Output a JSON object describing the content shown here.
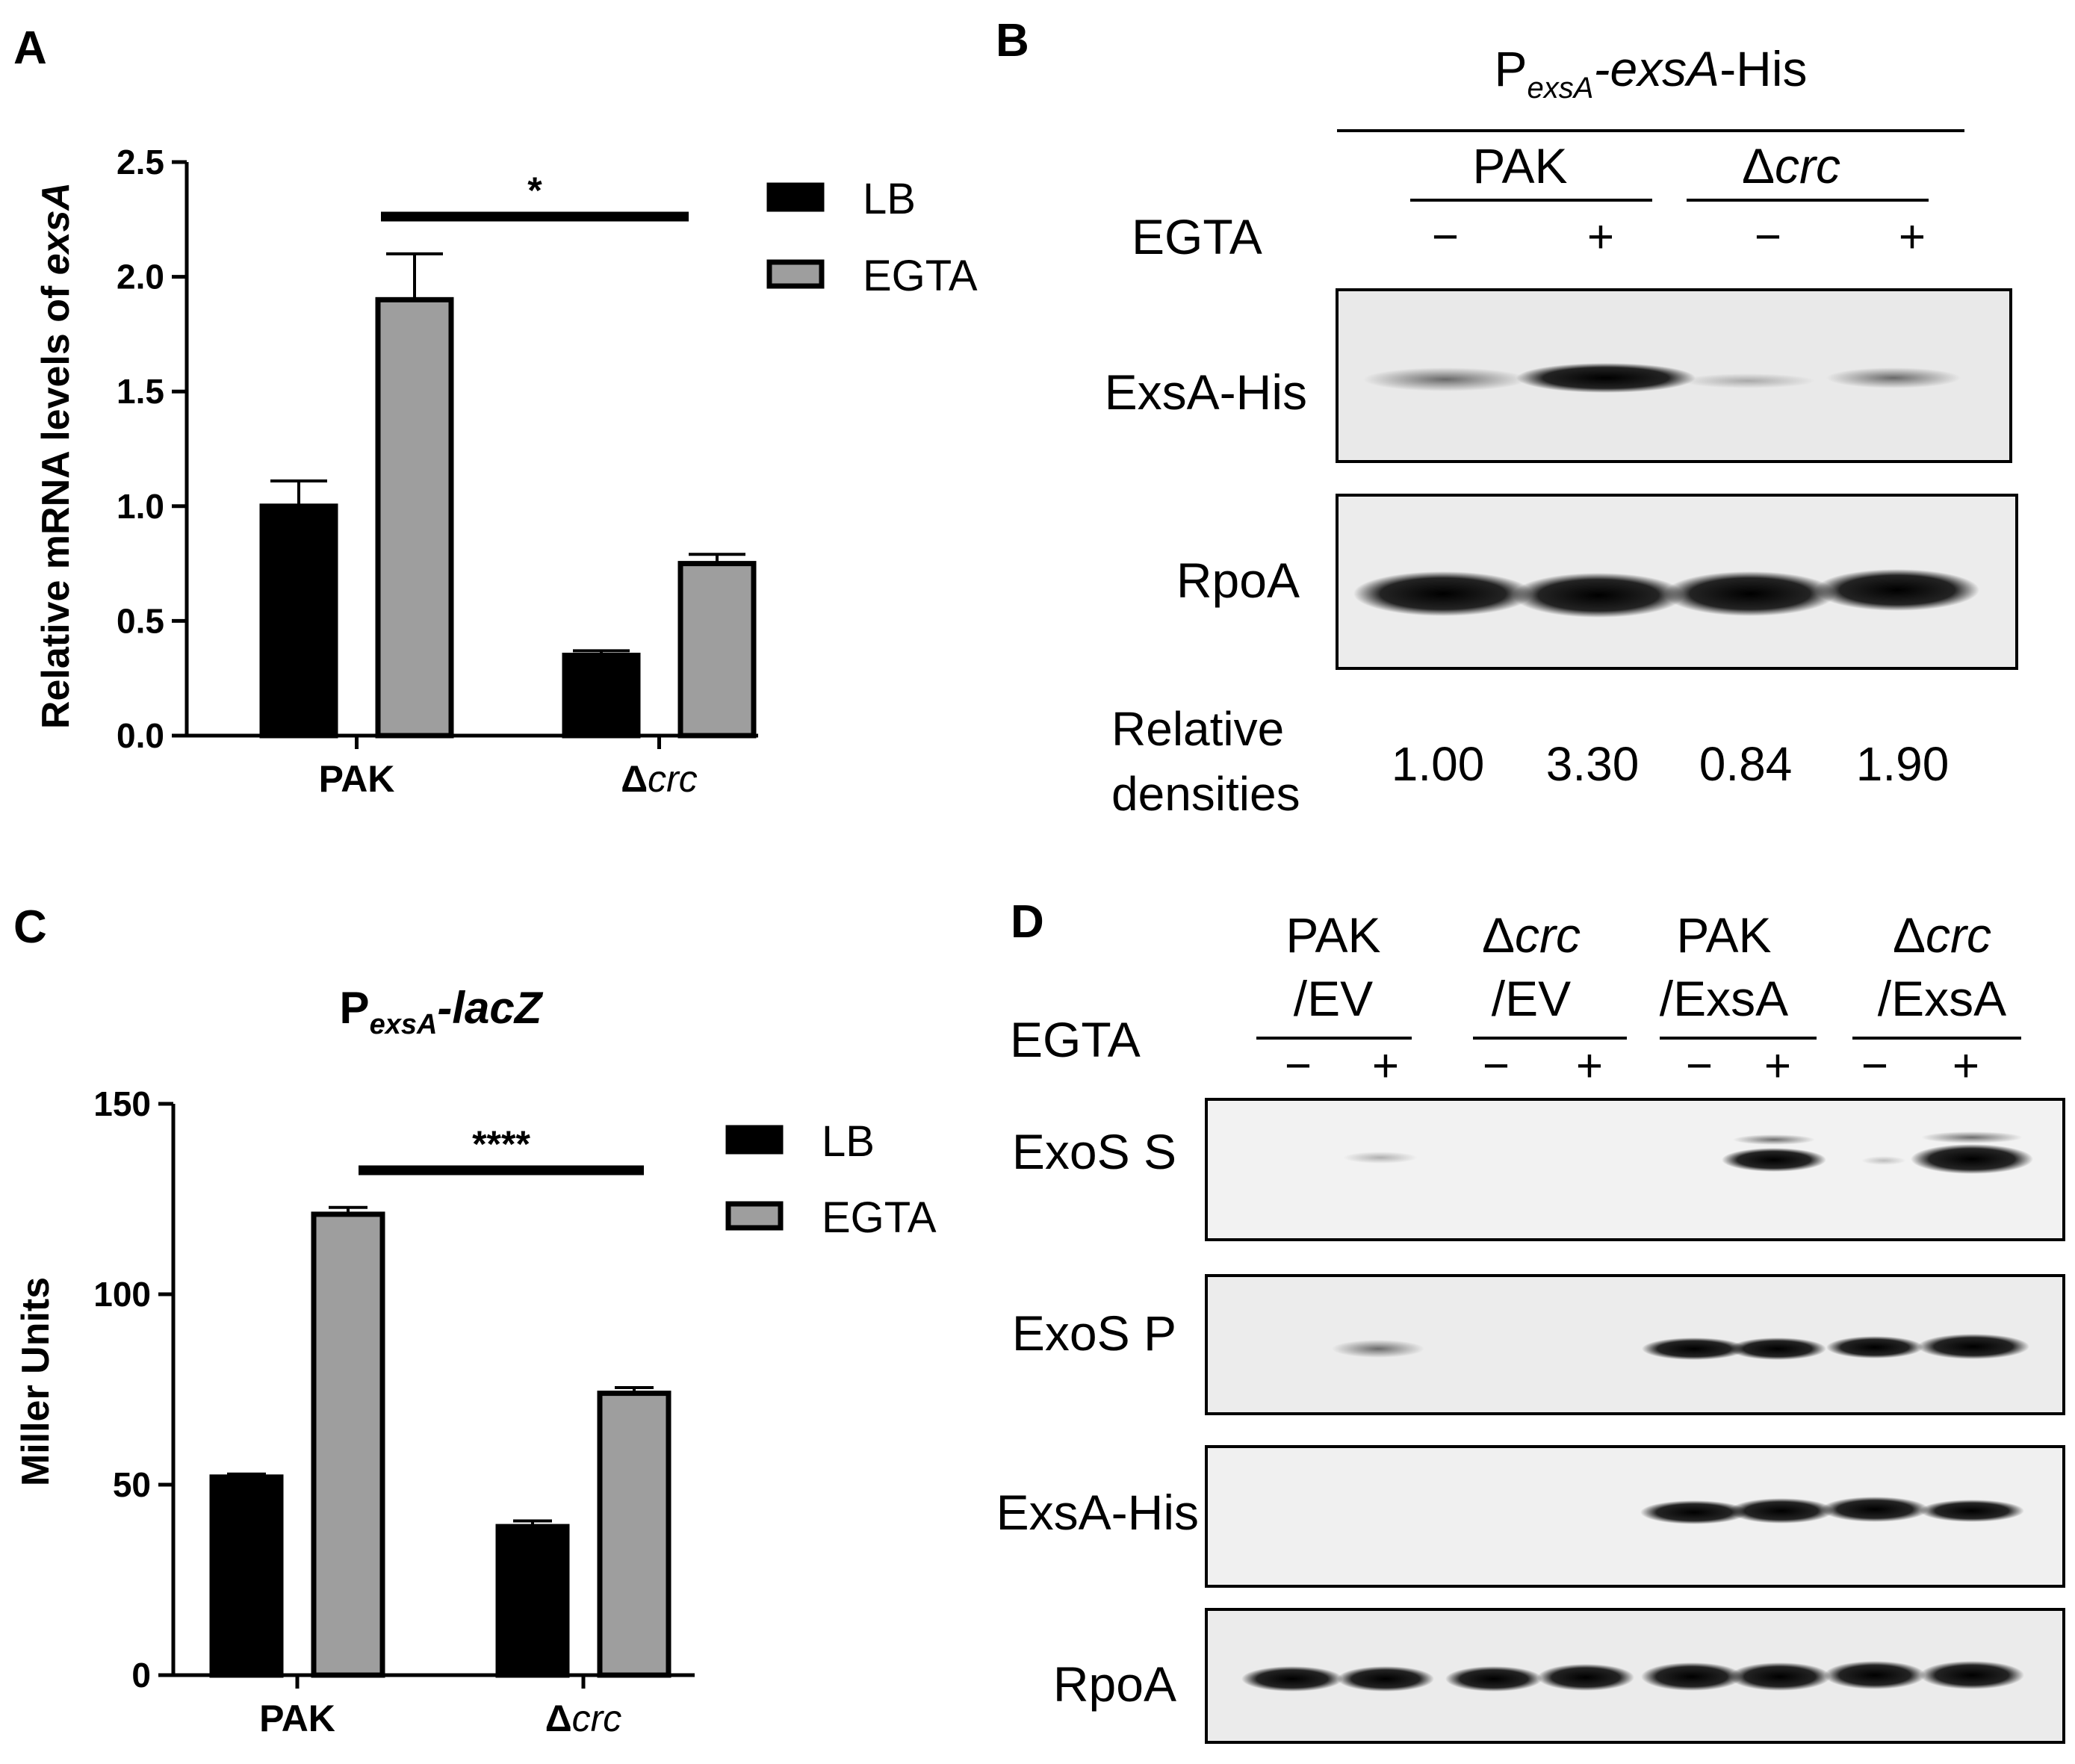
{
  "panels": {
    "A": {
      "letter": "A",
      "chart_data": {
        "type": "bar",
        "ylabel": "Relative mRNA levels of ",
        "ylabel_italic": "exsA",
        "categories": [
          "PAK",
          "Δcrc"
        ],
        "series": [
          {
            "name": "LB",
            "color": "#000000",
            "values": [
              1.0,
              0.35
            ],
            "errors": [
              0.11,
              0.02
            ]
          },
          {
            "name": "EGTA",
            "color": "#9e9e9e",
            "values": [
              1.9,
              0.75
            ],
            "errors": [
              0.2,
              0.04
            ]
          }
        ],
        "ylim": [
          0,
          2.5
        ],
        "yticks": [
          "0.0",
          "0.5",
          "1.0",
          "1.5",
          "2.0",
          "2.5"
        ],
        "significance": "*",
        "grid": false,
        "legend_position": "top-right"
      }
    },
    "C": {
      "letter": "C",
      "title_prefix": "P",
      "title_sub": "exsA",
      "title_suffix": "-lacZ",
      "chart_data": {
        "type": "bar",
        "ylabel": "Miller Units",
        "categories": [
          "PAK",
          "Δcrc"
        ],
        "series": [
          {
            "name": "LB",
            "color": "#000000",
            "values": [
              52,
              39
            ],
            "errors": [
              0.8,
              1.5
            ]
          },
          {
            "name": "EGTA",
            "color": "#9e9e9e",
            "values": [
              121,
              74
            ],
            "errors": [
              1.8,
              1.5
            ]
          }
        ],
        "ylim": [
          0,
          150
        ],
        "yticks": [
          "0",
          "50",
          "100",
          "150"
        ],
        "significance": "****",
        "grid": false,
        "legend_position": "top-right"
      }
    },
    "B": {
      "letter": "B",
      "header_prefix": "P",
      "header_sub": "exsA",
      "header_mid": "-exsA",
      "header_suffix": "-His",
      "strain_pak": "PAK",
      "strain_crc_delta": "Δ",
      "strain_crc_name": "crc",
      "egta_label": "EGTA",
      "signs": [
        "−",
        "+",
        "−",
        "+"
      ],
      "blot_exsa": "ExsA-His",
      "blot_rpoa": "RpoA",
      "densities_label_1": "Relative",
      "densities_label_2": "densities",
      "densities": [
        "1.00",
        "3.30",
        "0.84",
        "1.90"
      ]
    },
    "D": {
      "letter": "D",
      "groups": [
        {
          "delta": "",
          "top": "PAK",
          "bottom": "/EV"
        },
        {
          "delta": "Δ",
          "top": "crc",
          "bottom": "/EV"
        },
        {
          "delta": "",
          "top": "PAK",
          "bottom": "/ExsA"
        },
        {
          "delta": "Δ",
          "top": "crc",
          "bottom": "/ExsA"
        }
      ],
      "egta_label": "EGTA",
      "signs": [
        "−",
        "+",
        "−",
        "+",
        "−",
        "+",
        "−",
        "+"
      ],
      "blots": [
        "ExoS S",
        "ExoS P",
        "ExsA-His",
        "RpoA"
      ]
    }
  }
}
